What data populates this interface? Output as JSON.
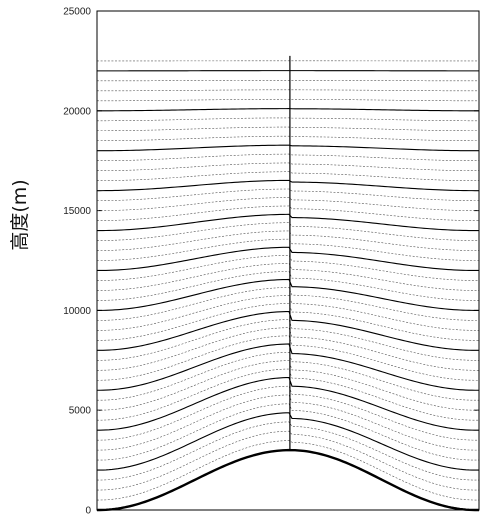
{
  "chart_data": {
    "type": "line",
    "title": "",
    "xlabel": "",
    "ylabel": "高度(m)",
    "ylim": [
      0,
      25000
    ],
    "yticks": [
      0,
      5000,
      10000,
      15000,
      20000,
      25000
    ],
    "ytick_labels": [
      "0",
      "5000",
      "10000",
      "15000",
      "20000",
      "25000"
    ],
    "xticks_visible": false,
    "grid": false,
    "legend": "none",
    "terrain": {
      "description_of_shape": "bell-shaped mountain",
      "peak_height": 3000,
      "base_height": 0
    },
    "level_spacing": 500,
    "top_level": 22750,
    "solid_line_every": 4,
    "series": [
      {
        "values": [
          0,
          3000,
          0
        ]
      },
      {
        "values": [
          22250,
          22250,
          22250
        ]
      }
    ],
    "colors": {
      "line": "#000000",
      "dashed_line": "#555555",
      "axis": "#000000"
    }
  }
}
